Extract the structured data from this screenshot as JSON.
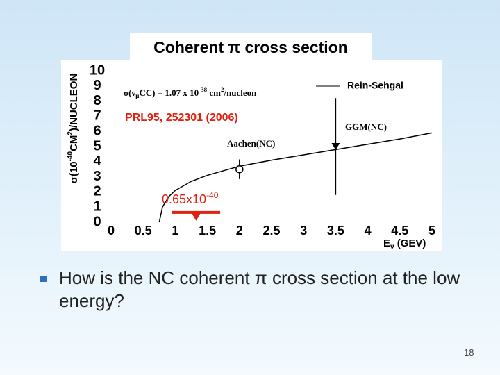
{
  "chart_data": {
    "type": "line",
    "title": "Coherent π cross section",
    "xlabel": [
      "E",
      "ν",
      " (GEV)"
    ],
    "ylabel": [
      "σ(10",
      "-40",
      "CM",
      "2",
      ")/NUCLEON"
    ],
    "xlim": [
      0,
      5
    ],
    "xticks": [
      0,
      0.5,
      1,
      1.5,
      2,
      2.5,
      3,
      3.5,
      4,
      4.5,
      5
    ],
    "ylim": [
      0,
      10
    ],
    "yticks": [
      0,
      1,
      2,
      3,
      4,
      5,
      6,
      7,
      8,
      9,
      10
    ],
    "series": [
      {
        "name": "Rein-Sehgal",
        "color": "#000000",
        "x": [
          0.75,
          0.8,
          0.9,
          1,
          1.25,
          1.5,
          2,
          2.5,
          3,
          3.5,
          4,
          4.5,
          5
        ],
        "y": [
          0,
          1.0,
          1.7,
          2.1,
          2.7,
          3.1,
          3.7,
          4.1,
          4.45,
          4.8,
          5.15,
          5.5,
          5.9
        ]
      }
    ],
    "points": [
      {
        "name": "Aachen(NC)",
        "x": 2,
        "y": 3.5,
        "error": 0.65,
        "marker": "circle"
      },
      {
        "name": "GGM(NC)",
        "x": 3.5,
        "y": 5.0,
        "error": 3.2,
        "marker": "triangle-down"
      }
    ],
    "formula": [
      "σ(ν",
      "μ",
      "CC)  = 1.07 x 10",
      "-38",
      " cm",
      "2",
      "/nucleon"
    ],
    "reference": "PRL95, 252301 (2006)",
    "estimate": {
      "label": [
        "0.65x10",
        "-40"
      ],
      "x": [
        0.95,
        1.7
      ],
      "y": 0.65,
      "color": "#e02010"
    }
  },
  "slide": {
    "bullet": "How is the NC coherent π cross section at the low energy?",
    "page": 18
  }
}
